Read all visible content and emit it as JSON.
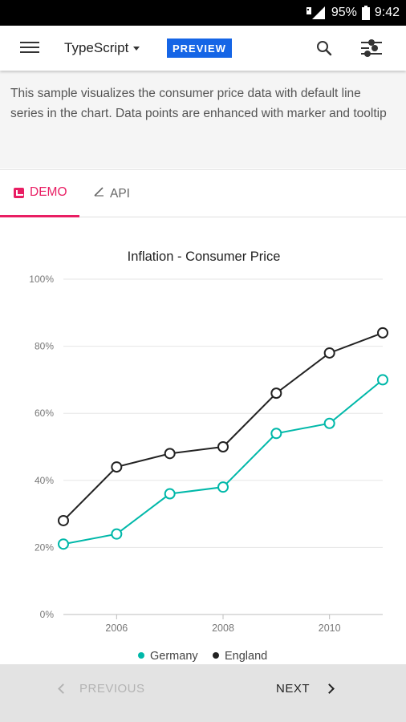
{
  "status_bar": {
    "battery": "95%",
    "time": "9:42"
  },
  "app_bar": {
    "language": "TypeScript",
    "badge": "PREVIEW"
  },
  "description": "This sample visualizes the consumer price data with default line series in the chart. Data points are enhanced with marker and tooltip",
  "tabs": {
    "demo": "DEMO",
    "api": "API"
  },
  "colors": {
    "accent": "#e91e63",
    "badge": "#1565e6",
    "germany": "#00b8a9",
    "england": "#222222"
  },
  "chart_data": {
    "type": "line",
    "title": "Inflation - Consumer Price",
    "x": [
      2005,
      2006,
      2007,
      2008,
      2009,
      2010,
      2011
    ],
    "xticks": [
      "2006",
      "2008",
      "2010"
    ],
    "xtick_values": [
      2006,
      2008,
      2010
    ],
    "yticks": [
      "0%",
      "20%",
      "40%",
      "60%",
      "80%",
      "100%"
    ],
    "ytick_values": [
      0,
      20,
      40,
      60,
      80,
      100
    ],
    "ylim": [
      0,
      100
    ],
    "xlim": [
      2005,
      2011
    ],
    "grid": true,
    "legend_position": "bottom",
    "series": [
      {
        "name": "Germany",
        "values": [
          21,
          24,
          36,
          38,
          54,
          57,
          70
        ],
        "color": "#00b8a9"
      },
      {
        "name": "England",
        "values": [
          28,
          44,
          48,
          50,
          66,
          78,
          84
        ],
        "color": "#222222"
      }
    ]
  },
  "bottom_nav": {
    "previous": "PREVIOUS",
    "next": "NEXT"
  }
}
